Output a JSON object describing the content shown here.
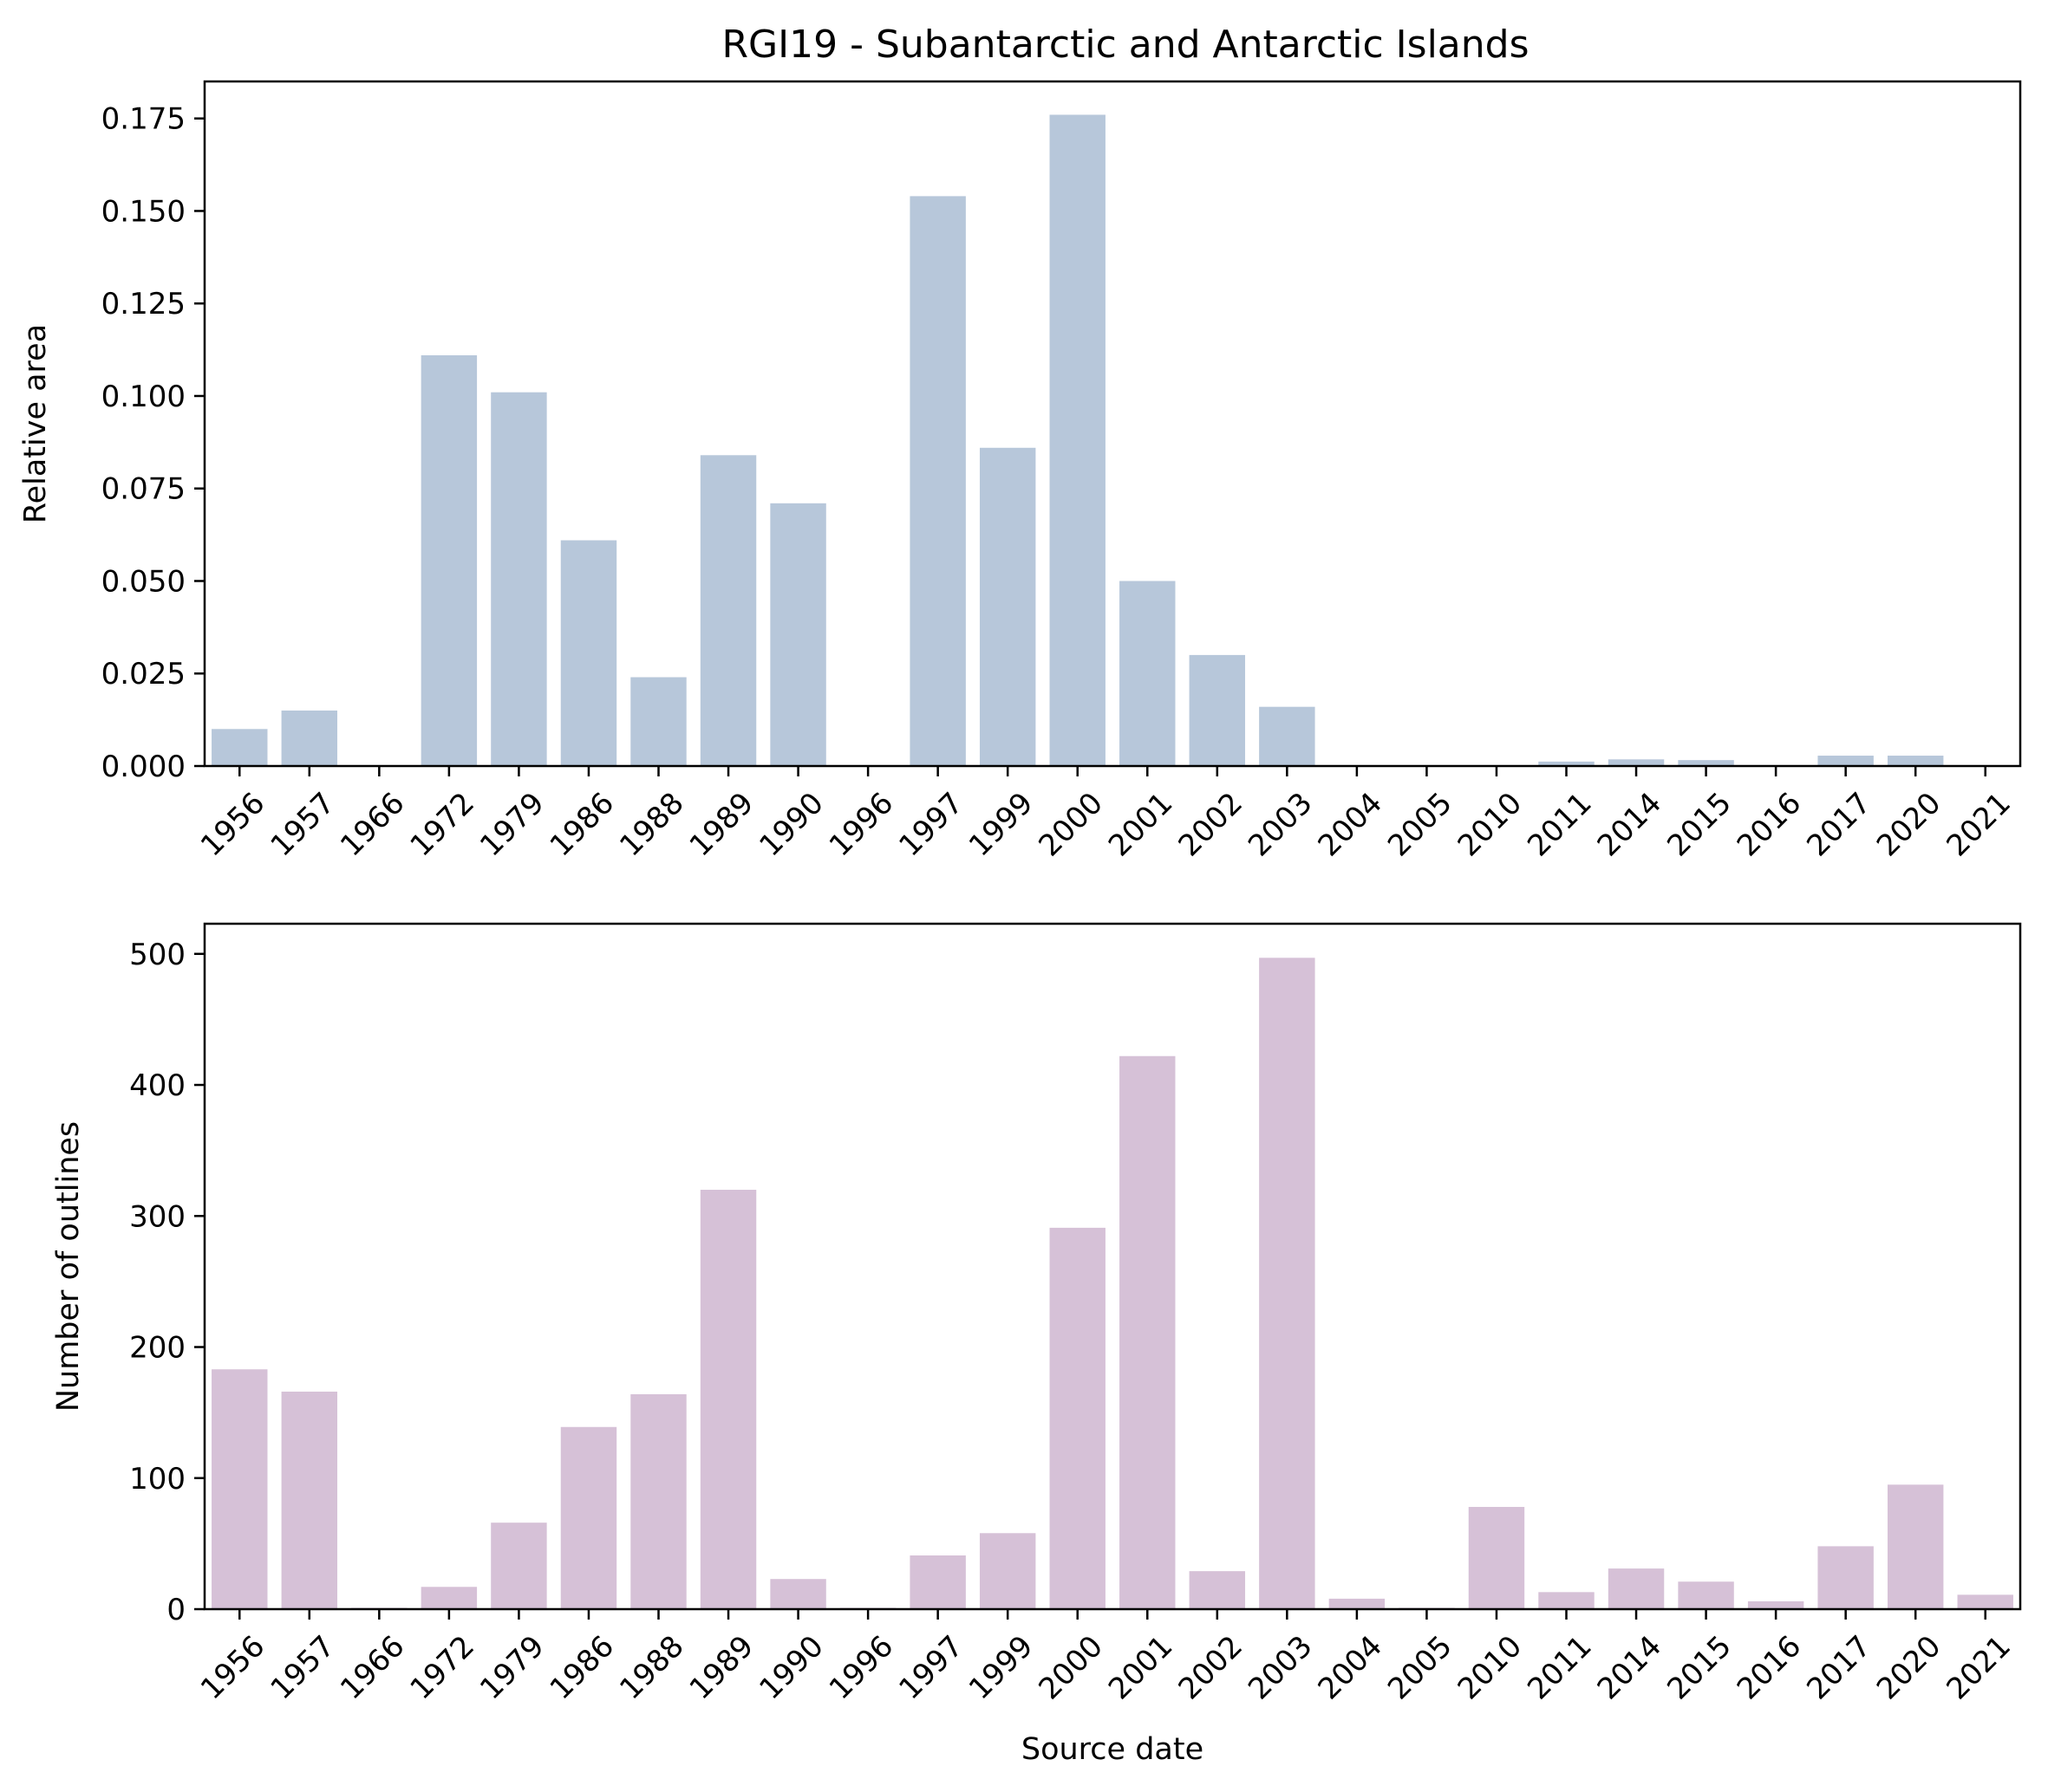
{
  "chart_data": [
    {
      "type": "bar",
      "title": "RGI19 - Subantarctic and Antarctic Islands",
      "xlabel": "",
      "ylabel": "Relative area",
      "color": "#b7c7da",
      "categories": [
        "1956",
        "1957",
        "1966",
        "1972",
        "1979",
        "1986",
        "1988",
        "1989",
        "1990",
        "1996",
        "1997",
        "1999",
        "2000",
        "2001",
        "2002",
        "2003",
        "2004",
        "2005",
        "2010",
        "2011",
        "2014",
        "2015",
        "2016",
        "2017",
        "2020",
        "2021"
      ],
      "values": [
        0.01,
        0.015,
        0.0,
        0.111,
        0.101,
        0.061,
        0.024,
        0.084,
        0.071,
        0.0,
        0.154,
        0.086,
        0.176,
        0.05,
        0.03,
        0.016,
        0.0,
        0.0,
        0.0,
        0.0012,
        0.0018,
        0.0016,
        0.0,
        0.0028,
        0.0028,
        0.0
      ],
      "ylim": [
        0,
        0.185
      ],
      "yticks": [
        0.0,
        0.025,
        0.05,
        0.075,
        0.1,
        0.125,
        0.15,
        0.175
      ],
      "ytick_labels": [
        "0.000",
        "0.025",
        "0.050",
        "0.075",
        "0.100",
        "0.125",
        "0.150",
        "0.175"
      ],
      "grid": false,
      "legend": "none"
    },
    {
      "type": "bar",
      "title": "",
      "xlabel": "Source date",
      "ylabel": "Number of outlines",
      "color": "#d6c1d7",
      "categories": [
        "1956",
        "1957",
        "1966",
        "1972",
        "1979",
        "1986",
        "1988",
        "1989",
        "1990",
        "1996",
        "1997",
        "1999",
        "2000",
        "2001",
        "2002",
        "2003",
        "2004",
        "2005",
        "2010",
        "2011",
        "2014",
        "2015",
        "2016",
        "2017",
        "2020",
        "2021"
      ],
      "values": [
        183,
        166,
        1,
        17,
        66,
        139,
        164,
        320,
        23,
        1,
        41,
        58,
        291,
        422,
        29,
        497,
        8,
        1,
        78,
        13,
        31,
        21,
        6,
        48,
        95,
        11
      ],
      "ylim": [
        0,
        523
      ],
      "yticks": [
        0,
        100,
        200,
        300,
        400,
        500
      ],
      "ytick_labels": [
        "0",
        "100",
        "200",
        "300",
        "400",
        "500"
      ],
      "grid": false,
      "legend": "none"
    }
  ]
}
